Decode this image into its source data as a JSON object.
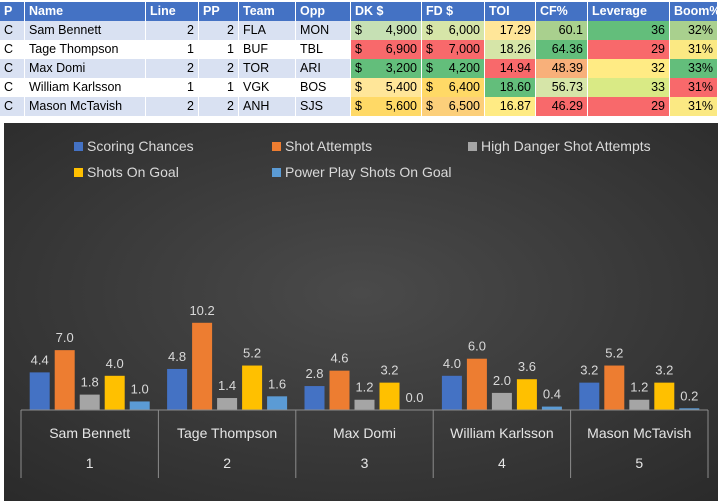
{
  "table": {
    "headers": [
      "P",
      "Name",
      "Line",
      "PP",
      "Team",
      "Opp",
      "DK $",
      "FD $",
      "TOI",
      "CF%",
      "Leverage",
      "Boom%"
    ],
    "currency_symbol": "$",
    "rows": [
      {
        "pos": "C",
        "name": "Sam Bennett",
        "line": "2",
        "pp": "2",
        "team": "FLA",
        "opp": "MON",
        "dk": "4,900",
        "fd": "6,000",
        "toi": "17.29",
        "cf": "60.1",
        "leverage": "36",
        "boom": "32%"
      },
      {
        "pos": "C",
        "name": "Tage Thompson",
        "line": "1",
        "pp": "1",
        "team": "BUF",
        "opp": "TBL",
        "dk": "6,900",
        "fd": "7,000",
        "toi": "18.26",
        "cf": "64.36",
        "leverage": "29",
        "boom": "31%"
      },
      {
        "pos": "C",
        "name": "Max Domi",
        "line": "2",
        "pp": "2",
        "team": "TOR",
        "opp": "ARI",
        "dk": "3,200",
        "fd": "4,200",
        "toi": "14.94",
        "cf": "48.39",
        "leverage": "32",
        "boom": "33%"
      },
      {
        "pos": "C",
        "name": "William Karlsson",
        "line": "1",
        "pp": "1",
        "team": "VGK",
        "opp": "BOS",
        "dk": "5,400",
        "fd": "6,400",
        "toi": "18.60",
        "cf": "56.73",
        "leverage": "33",
        "boom": "31%"
      },
      {
        "pos": "C",
        "name": "Mason McTavish",
        "line": "2",
        "pp": "2",
        "team": "ANH",
        "opp": "SJS",
        "dk": "5,600",
        "fd": "6,500",
        "toi": "16.87",
        "cf": "46.29",
        "leverage": "29",
        "boom": "31%"
      }
    ],
    "cell_colors": [
      {
        "dk": "#c6e0b4",
        "fd": "#d6e5a8",
        "toi": "#ffe699",
        "cf": "#a9d08e",
        "leverage": "#63be7b",
        "boom": "#a9d08e"
      },
      {
        "dk": "#f8696b",
        "fd": "#f8696b",
        "toi": "#d6e5a8",
        "cf": "#63be7b",
        "leverage": "#f8696b",
        "boom": "#fbe983"
      },
      {
        "dk": "#63be7b",
        "fd": "#63be7b",
        "toi": "#f8696b",
        "cf": "#f8b07a",
        "leverage": "#ffeb84",
        "boom": "#63be7b"
      },
      {
        "dk": "#ffe699",
        "fd": "#ffd966",
        "toi": "#63be7b",
        "cf": "#d6e5a8",
        "leverage": "#d9ea85",
        "boom": "#f8696b"
      },
      {
        "dk": "#ffd966",
        "fd": "#fccf7a",
        "toi": "#ffeb84",
        "cf": "#f8696b",
        "leverage": "#f8696b",
        "boom": "#fbe983"
      }
    ]
  },
  "chart_data": {
    "type": "bar",
    "title": "",
    "categories": [
      "Sam Bennett",
      "Tage Thompson",
      "Max Domi",
      "William Karlsson",
      "Mason McTavish"
    ],
    "group_labels": [
      "1",
      "2",
      "3",
      "4",
      "5"
    ],
    "series": [
      {
        "name": "Scoring Chances",
        "color": "#4472c4",
        "values": [
          4.4,
          4.8,
          2.8,
          4.0,
          3.2
        ]
      },
      {
        "name": "Shot Attempts",
        "color": "#ed7d31",
        "values": [
          7.0,
          10.2,
          4.6,
          6.0,
          5.2
        ]
      },
      {
        "name": "High Danger Shot Attempts",
        "color": "#a5a5a5",
        "values": [
          1.8,
          1.4,
          1.2,
          2.0,
          1.2
        ]
      },
      {
        "name": "Shots On Goal",
        "color": "#ffc000",
        "values": [
          4.0,
          5.2,
          3.2,
          3.6,
          3.2
        ]
      },
      {
        "name": "Power Play Shots On Goal",
        "color": "#5b9bd5",
        "values": [
          1.0,
          1.6,
          0.0,
          0.4,
          0.2
        ]
      }
    ],
    "ylim": [
      0,
      12
    ],
    "grid": false,
    "legend_position": "top",
    "background": "#404040"
  }
}
